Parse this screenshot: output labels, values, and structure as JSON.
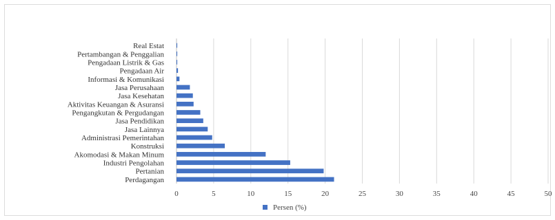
{
  "chart_data": {
    "type": "bar",
    "orientation": "horizontal",
    "title": "",
    "xlabel": "",
    "ylabel": "",
    "categories": [
      "Perdagangan",
      "Pertanian",
      "Industri Pengolahan",
      "Akomodasi & Makan Minum",
      "Konstruksi",
      "Administrasi Pemerintahan",
      "Jasa Lainnya",
      "Jasa Pendidikan",
      "Pengangkutan & Pergudangan",
      "Aktivitas Keuangan & Asuransi",
      "Jasa Kesehatan",
      "Jasa Perusahaan",
      "Informasi & Komunikasi",
      "Pengadaan Air",
      "Pengadaan Listrik & Gas",
      "Pertambangan & Penggalian",
      "Real Estat"
    ],
    "series": [
      {
        "name": "Persen (%)",
        "color": "#4472c4",
        "values": [
          21.2,
          19.8,
          15.3,
          12.0,
          6.5,
          4.8,
          4.2,
          3.6,
          3.2,
          2.3,
          2.2,
          1.8,
          0.4,
          0.2,
          0.1,
          0.1,
          0.1
        ]
      }
    ],
    "xlim": [
      0,
      50
    ],
    "xticks": [
      0,
      5,
      10,
      15,
      20,
      25,
      30,
      35,
      40,
      45,
      50
    ],
    "grid": true,
    "legend_position": "bottom"
  }
}
